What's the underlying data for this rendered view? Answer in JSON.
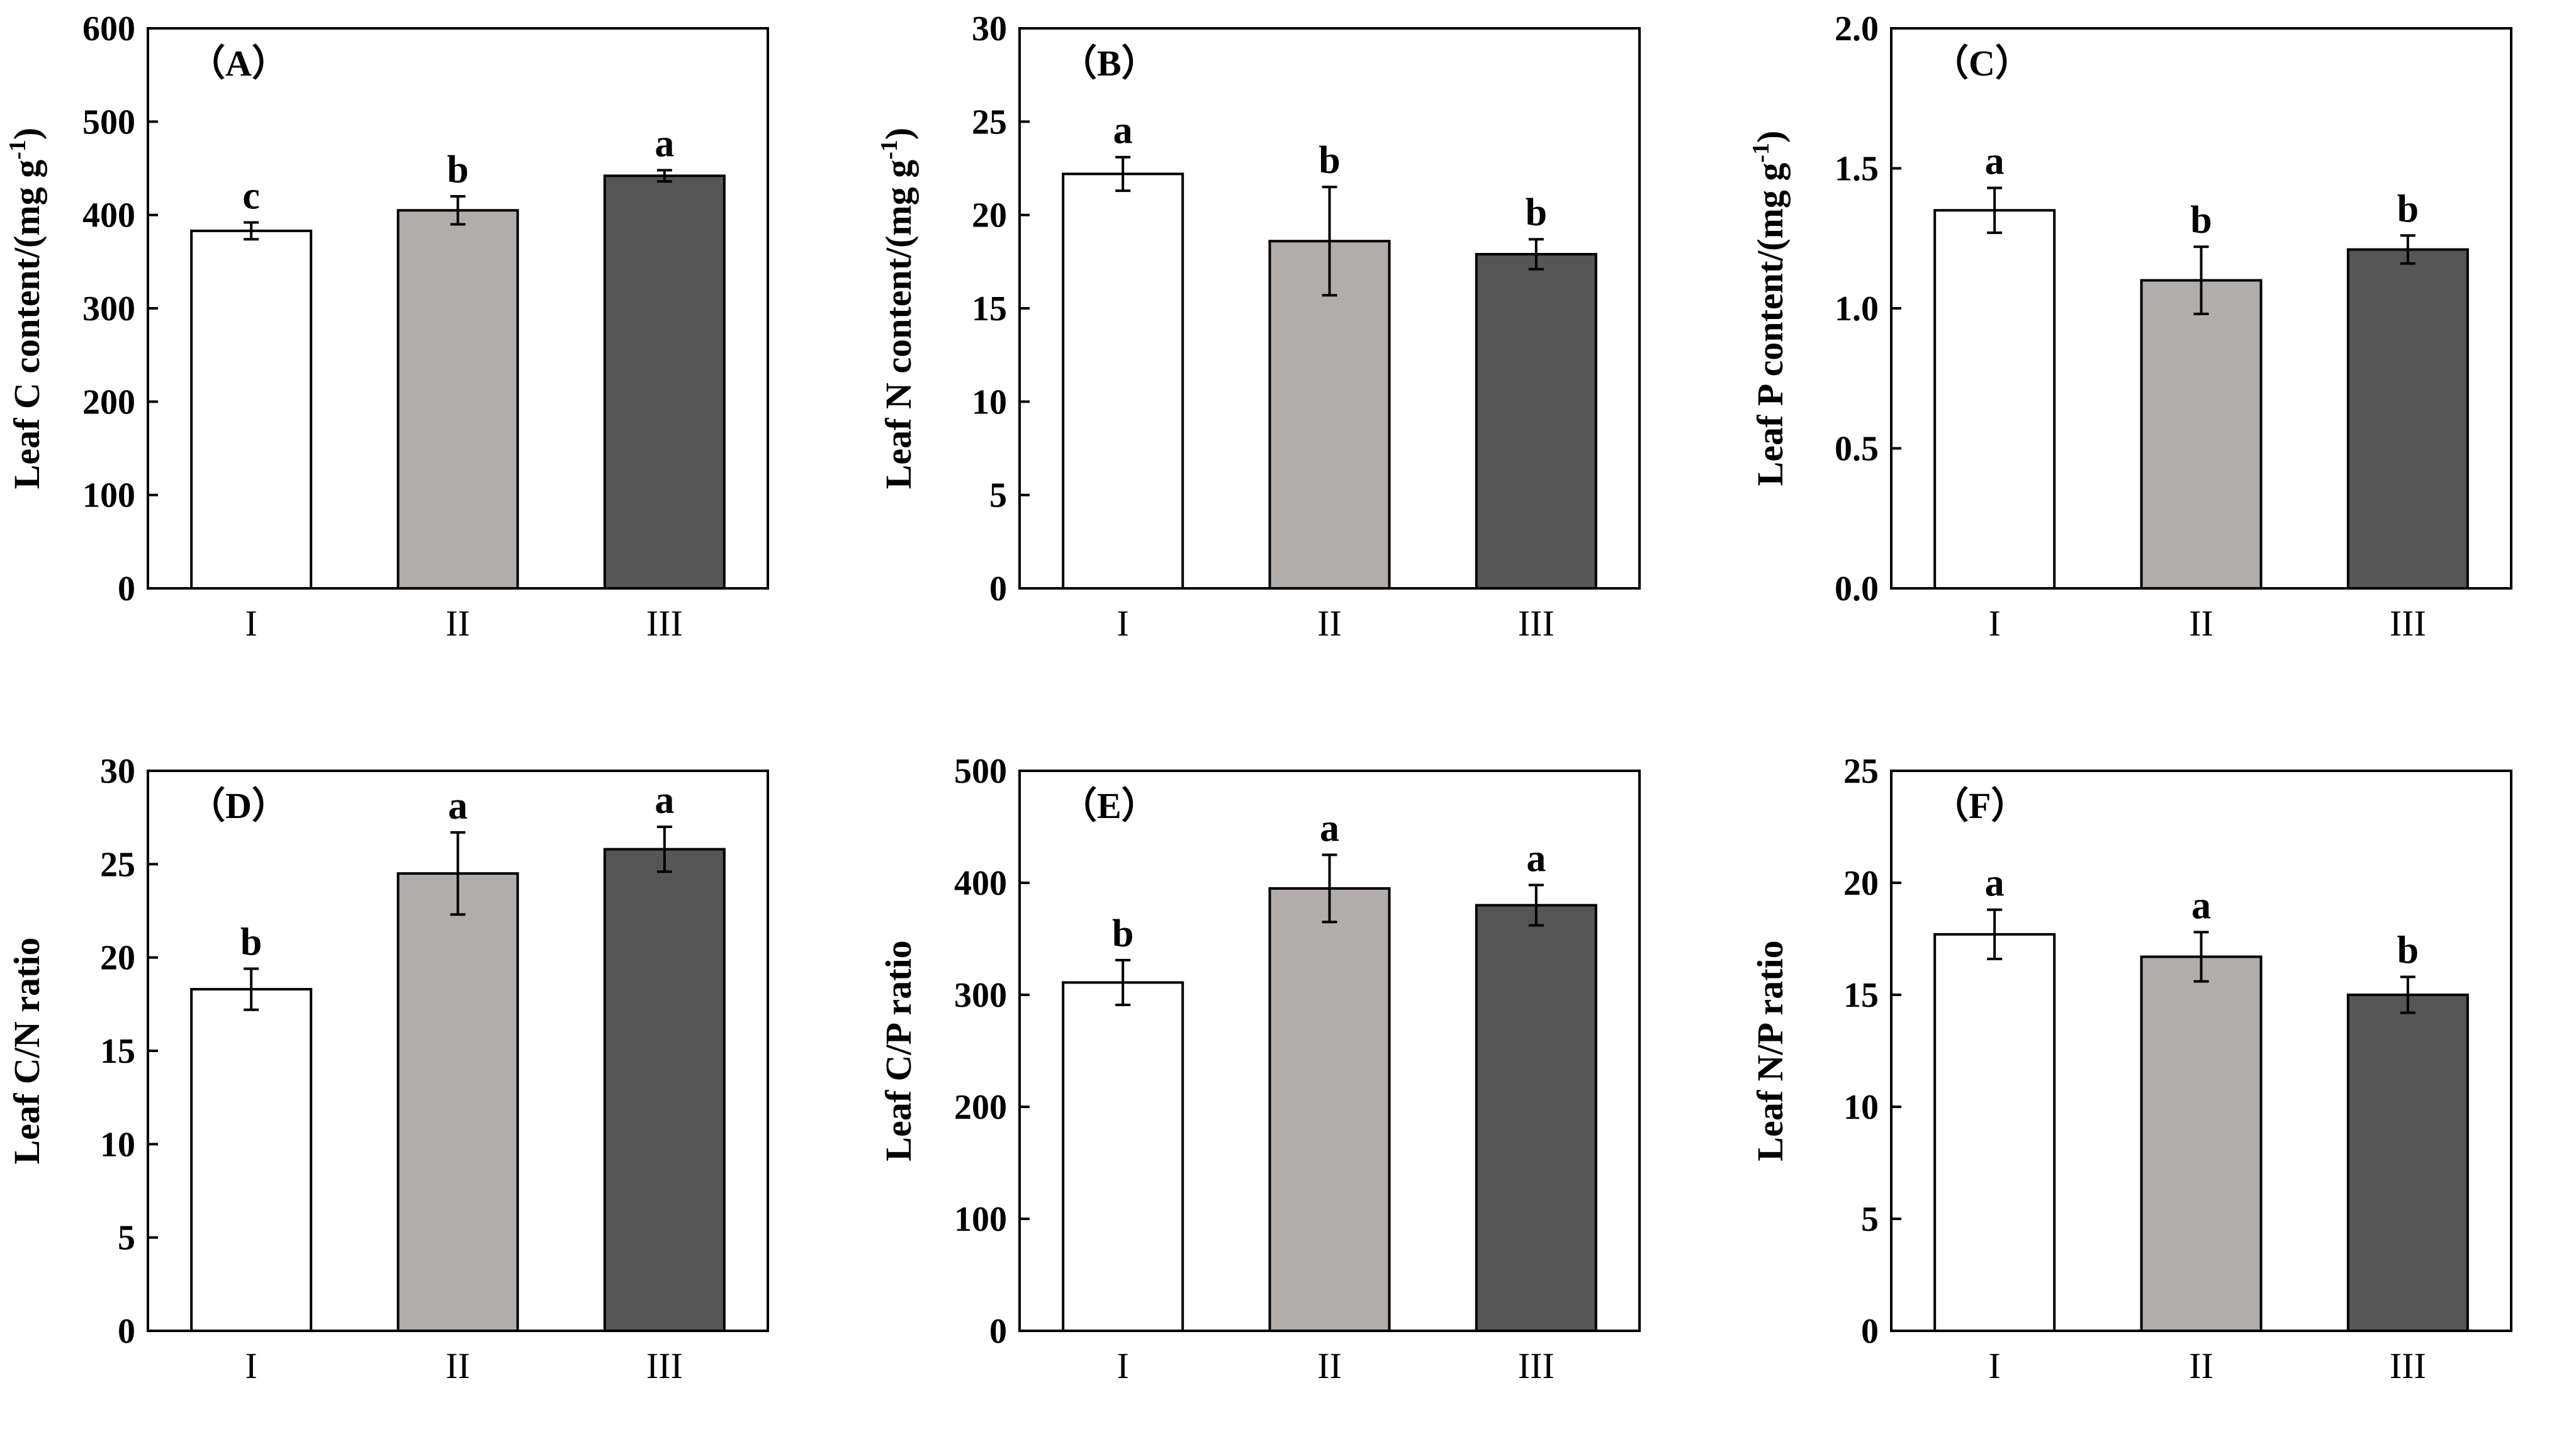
{
  "colors": {
    "bar_fills": [
      "#ffffff",
      "#b1adab",
      "#565656"
    ],
    "stroke": "#000000"
  },
  "chart_data": [
    {
      "type": "bar",
      "panel": "（A）",
      "ylabel": "Leaf C content/(mg g-1)",
      "ylabel_main": "Leaf C content/(mg g",
      "ylabel_sup": "-1",
      "ylabel_end": ")",
      "categories": [
        "I",
        "II",
        "III"
      ],
      "values": [
        383,
        405,
        442
      ],
      "errors": [
        9,
        15,
        6
      ],
      "sig": [
        "c",
        "b",
        "a"
      ],
      "ylim": [
        0,
        600
      ],
      "yticks": [
        0,
        100,
        200,
        300,
        400,
        500,
        600
      ],
      "ytick_labels": [
        "0",
        "100",
        "200",
        "300",
        "400",
        "500",
        "600"
      ]
    },
    {
      "type": "bar",
      "panel": "（B）",
      "ylabel": "Leaf N content/(mg g-1)",
      "ylabel_main": "Leaf N content/(mg g",
      "ylabel_sup": "-1",
      "ylabel_end": ")",
      "categories": [
        "I",
        "II",
        "III"
      ],
      "values": [
        22.2,
        18.6,
        17.9
      ],
      "errors": [
        0.9,
        2.9,
        0.8
      ],
      "sig": [
        "a",
        "b",
        "b"
      ],
      "ylim": [
        0,
        30
      ],
      "yticks": [
        0,
        5,
        10,
        15,
        20,
        25,
        30
      ],
      "ytick_labels": [
        "0",
        "5",
        "10",
        "15",
        "20",
        "25",
        "30"
      ]
    },
    {
      "type": "bar",
      "panel": "（C）",
      "ylabel": "Leaf P content/(mg g-1)",
      "ylabel_main": "Leaf P content/(mg g",
      "ylabel_sup": "-1",
      "ylabel_end": ")",
      "categories": [
        "I",
        "II",
        "III"
      ],
      "values": [
        1.35,
        1.1,
        1.21
      ],
      "errors": [
        0.08,
        0.12,
        0.05
      ],
      "sig": [
        "a",
        "b",
        "b"
      ],
      "ylim": [
        0,
        2.0
      ],
      "yticks": [
        0,
        0.5,
        1.0,
        1.5,
        2.0
      ],
      "ytick_labels": [
        "0.0",
        "0.5",
        "1.0",
        "1.5",
        "2.0"
      ]
    },
    {
      "type": "bar",
      "panel": "（D）",
      "ylabel": "Leaf C/N ratio",
      "ylabel_main": "Leaf C/N ratio",
      "ylabel_sup": "",
      "ylabel_end": "",
      "categories": [
        "I",
        "II",
        "III"
      ],
      "values": [
        18.3,
        24.5,
        25.8
      ],
      "errors": [
        1.1,
        2.2,
        1.2
      ],
      "sig": [
        "b",
        "a",
        "a"
      ],
      "ylim": [
        0,
        30
      ],
      "yticks": [
        0,
        5,
        10,
        15,
        20,
        25,
        30
      ],
      "ytick_labels": [
        "0",
        "5",
        "10",
        "15",
        "20",
        "25",
        "30"
      ]
    },
    {
      "type": "bar",
      "panel": "（E）",
      "ylabel": "Leaf C/P ratio",
      "ylabel_main": "Leaf C/P ratio",
      "ylabel_sup": "",
      "ylabel_end": "",
      "categories": [
        "I",
        "II",
        "III"
      ],
      "values": [
        311,
        395,
        380
      ],
      "errors": [
        20,
        30,
        18
      ],
      "sig": [
        "b",
        "a",
        "a"
      ],
      "ylim": [
        0,
        500
      ],
      "yticks": [
        0,
        100,
        200,
        300,
        400,
        500
      ],
      "ytick_labels": [
        "0",
        "100",
        "200",
        "300",
        "400",
        "500"
      ]
    },
    {
      "type": "bar",
      "panel": "（F）",
      "ylabel": "Leaf N/P ratio",
      "ylabel_main": "Leaf N/P ratio",
      "ylabel_sup": "",
      "ylabel_end": "",
      "categories": [
        "I",
        "II",
        "III"
      ],
      "values": [
        17.7,
        16.7,
        15.0
      ],
      "errors": [
        1.1,
        1.1,
        0.8
      ],
      "sig": [
        "a",
        "a",
        "b"
      ],
      "ylim": [
        0,
        25
      ],
      "yticks": [
        0,
        5,
        10,
        15,
        20,
        25
      ],
      "ytick_labels": [
        "0",
        "5",
        "10",
        "15",
        "20",
        "25"
      ]
    }
  ]
}
